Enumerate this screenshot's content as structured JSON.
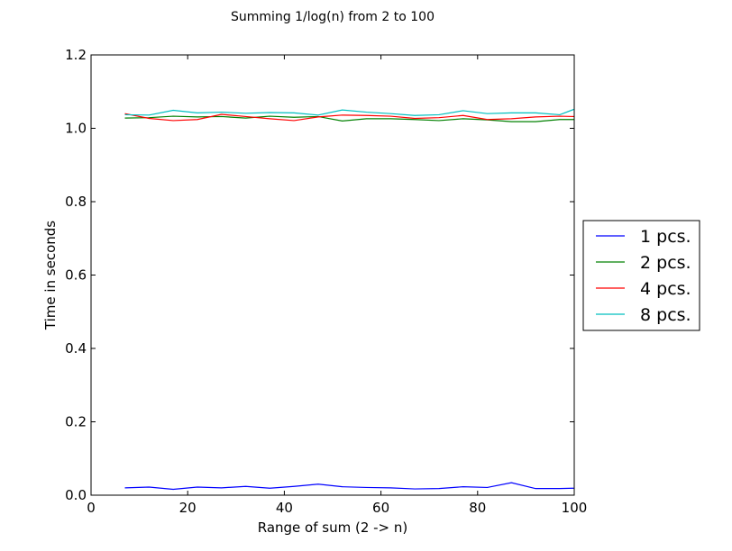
{
  "chart_data": {
    "type": "line",
    "title": "Summing 1/log(n) from 2 to 100",
    "xlabel": "Range of sum (2 -> n)",
    "ylabel": "Time in seconds",
    "xlim": [
      0,
      100
    ],
    "ylim": [
      0,
      1.2
    ],
    "xticks": [
      0,
      20,
      40,
      60,
      80,
      100
    ],
    "yticks": [
      0.0,
      0.2,
      0.4,
      0.6,
      0.8,
      1.0,
      1.2
    ],
    "xtick_labels": [
      "0",
      "20",
      "40",
      "60",
      "80",
      "100"
    ],
    "ytick_labels": [
      "0.0",
      "0.2",
      "0.4",
      "0.6",
      "0.8",
      "1.0",
      "1.2"
    ],
    "grid": false,
    "legend_position": "outside-right",
    "x": [
      7,
      12,
      17,
      22,
      27,
      32,
      37,
      42,
      47,
      52,
      57,
      62,
      67,
      72,
      77,
      82,
      87,
      92,
      97,
      100
    ],
    "series": [
      {
        "name": "1 pcs.",
        "color": "#0000ff",
        "values": [
          0.02,
          0.022,
          0.016,
          0.022,
          0.02,
          0.024,
          0.019,
          0.024,
          0.03,
          0.023,
          0.021,
          0.02,
          0.017,
          0.018,
          0.023,
          0.021,
          0.034,
          0.018,
          0.018,
          0.019
        ]
      },
      {
        "name": "2 pcs.",
        "color": "#008000",
        "values": [
          1.028,
          1.029,
          1.033,
          1.031,
          1.032,
          1.028,
          1.033,
          1.03,
          1.032,
          1.02,
          1.026,
          1.026,
          1.024,
          1.021,
          1.026,
          1.023,
          1.018,
          1.018,
          1.024,
          1.024
        ]
      },
      {
        "name": "4 pcs.",
        "color": "#ff0000",
        "values": [
          1.04,
          1.027,
          1.021,
          1.024,
          1.038,
          1.032,
          1.026,
          1.021,
          1.031,
          1.036,
          1.035,
          1.033,
          1.027,
          1.029,
          1.035,
          1.024,
          1.026,
          1.031,
          1.033,
          1.032
        ]
      },
      {
        "name": "8 pcs.",
        "color": "#00bfbf",
        "values": [
          1.037,
          1.036,
          1.049,
          1.042,
          1.044,
          1.041,
          1.043,
          1.042,
          1.036,
          1.05,
          1.044,
          1.04,
          1.035,
          1.037,
          1.048,
          1.04,
          1.042,
          1.042,
          1.037,
          1.052
        ]
      }
    ]
  }
}
